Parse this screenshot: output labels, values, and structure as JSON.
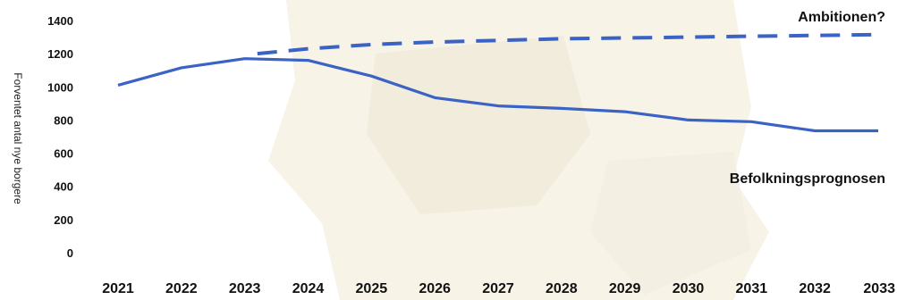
{
  "chart_data": {
    "type": "line",
    "ylabel": "Forventet antal nye borgere",
    "xlabel": "",
    "ylim": [
      0,
      1400
    ],
    "yticks": [
      0,
      200,
      400,
      600,
      800,
      1000,
      1200,
      1400
    ],
    "categories": [
      "2021",
      "2022",
      "2023",
      "2024",
      "2025",
      "2026",
      "2027",
      "2028",
      "2029",
      "2030",
      "2031",
      "2032",
      "2033"
    ],
    "grid": false,
    "series": [
      {
        "name": "Befolkningsprognosen",
        "style": "solid",
        "color": "#3b63c6",
        "x": [
          "2021",
          "2022",
          "2023",
          "2024",
          "2025",
          "2026",
          "2027",
          "2028",
          "2029",
          "2030",
          "2031",
          "2032",
          "2033"
        ],
        "values": [
          1010,
          1115,
          1170,
          1160,
          1065,
          935,
          885,
          870,
          850,
          800,
          790,
          735,
          735
        ]
      },
      {
        "name": "Ambitionen?",
        "style": "dashed",
        "color": "#3b63c6",
        "x": [
          "2023.2",
          "2024",
          "2025",
          "2026",
          "2027",
          "2028",
          "2029",
          "2030",
          "2031",
          "2032",
          "2033"
        ],
        "values": [
          1200,
          1230,
          1255,
          1270,
          1280,
          1290,
          1295,
          1300,
          1305,
          1310,
          1315
        ]
      }
    ]
  }
}
